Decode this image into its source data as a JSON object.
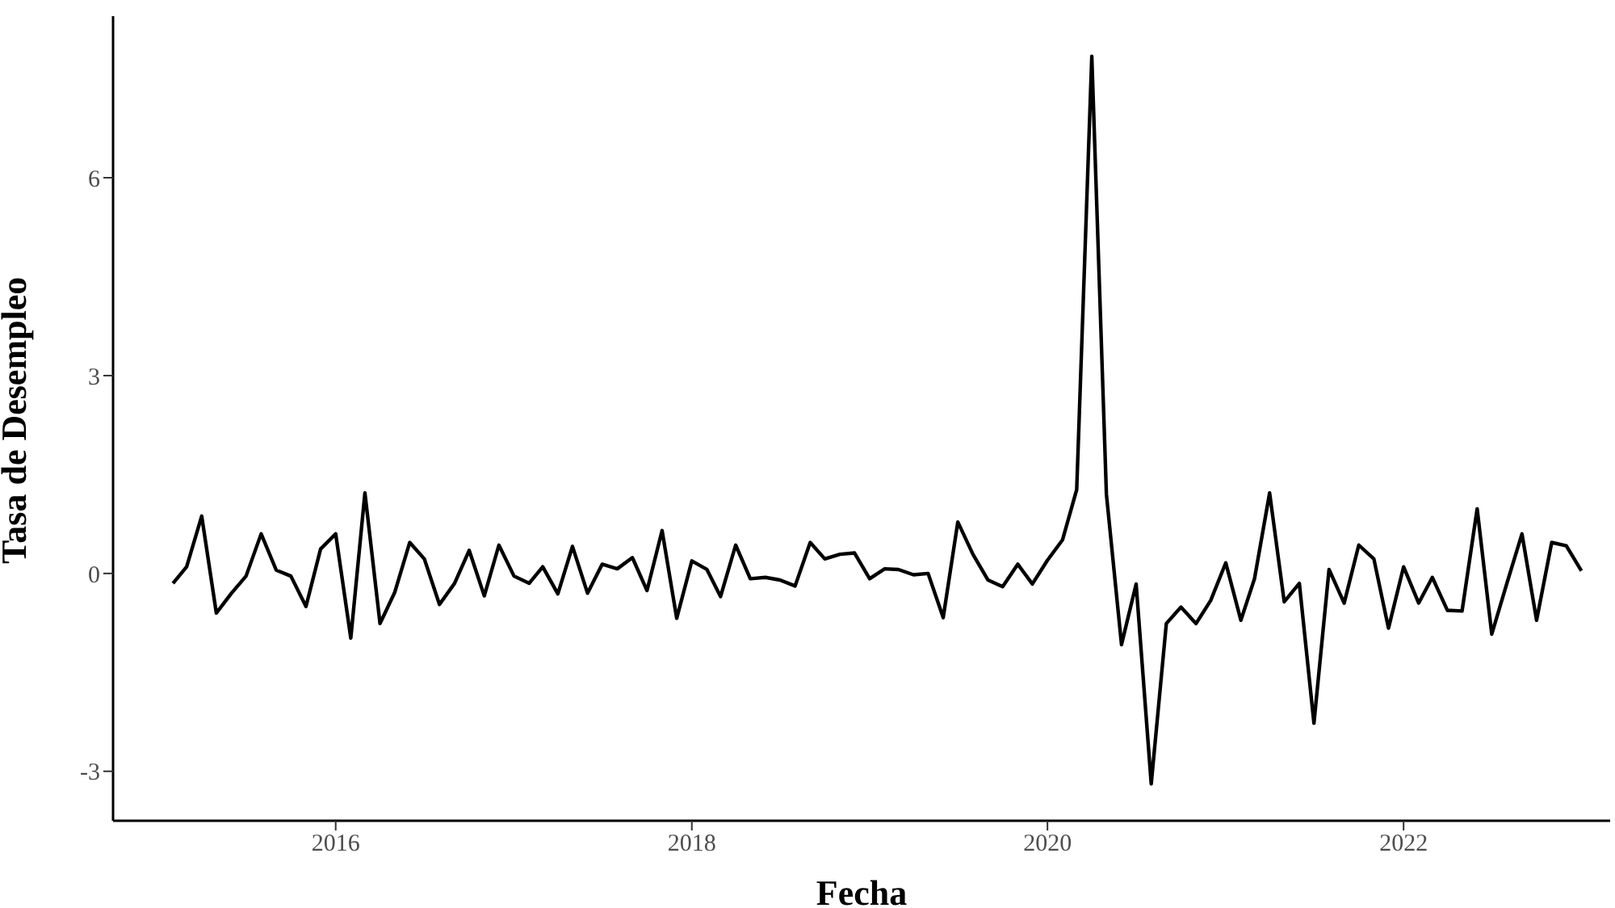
{
  "chart_data": {
    "type": "line",
    "xlabel": "Fecha",
    "ylabel": "Tasa de Desempleo",
    "x": [
      "2015-02",
      "2015-03",
      "2015-04",
      "2015-05",
      "2015-06",
      "2015-07",
      "2015-08",
      "2015-09",
      "2015-10",
      "2015-11",
      "2015-12",
      "2016-01",
      "2016-02",
      "2016-03",
      "2016-04",
      "2016-05",
      "2016-06",
      "2016-07",
      "2016-08",
      "2016-09",
      "2016-10",
      "2016-11",
      "2016-12",
      "2017-01",
      "2017-02",
      "2017-03",
      "2017-04",
      "2017-05",
      "2017-06",
      "2017-07",
      "2017-08",
      "2017-09",
      "2017-10",
      "2017-11",
      "2017-12",
      "2018-01",
      "2018-02",
      "2018-03",
      "2018-04",
      "2018-05",
      "2018-06",
      "2018-07",
      "2018-08",
      "2018-09",
      "2018-10",
      "2018-11",
      "2018-12",
      "2019-01",
      "2019-02",
      "2019-03",
      "2019-04",
      "2019-05",
      "2019-06",
      "2019-07",
      "2019-08",
      "2019-09",
      "2019-10",
      "2019-11",
      "2019-12",
      "2020-01",
      "2020-02",
      "2020-03",
      "2020-04",
      "2020-05",
      "2020-06",
      "2020-07",
      "2020-08",
      "2020-09",
      "2020-10",
      "2020-11",
      "2020-12",
      "2021-01",
      "2021-02",
      "2021-03",
      "2021-04",
      "2021-05",
      "2021-06",
      "2021-07",
      "2021-08",
      "2021-09",
      "2021-10",
      "2021-11",
      "2021-12",
      "2022-01",
      "2022-02",
      "2022-03",
      "2022-04",
      "2022-05",
      "2022-06",
      "2022-07",
      "2022-08",
      "2022-09",
      "2022-10",
      "2022-11",
      "2022-12",
      "2023-01"
    ],
    "series": [
      {
        "color": "#000000",
        "values": [
          -0.15,
          0.1,
          0.87,
          -0.6,
          -0.3,
          -0.04,
          0.6,
          0.05,
          -0.04,
          -0.5,
          0.37,
          0.6,
          -0.98,
          1.22,
          -0.76,
          -0.29,
          0.47,
          0.22,
          -0.47,
          -0.15,
          0.35,
          -0.34,
          0.43,
          -0.04,
          -0.15,
          0.1,
          -0.31,
          0.41,
          -0.3,
          0.14,
          0.07,
          0.24,
          -0.26,
          0.65,
          -0.68,
          0.19,
          0.06,
          -0.35,
          0.43,
          -0.08,
          -0.06,
          -0.1,
          -0.19,
          0.47,
          0.22,
          0.29,
          0.31,
          -0.08,
          0.07,
          0.06,
          -0.02,
          0,
          -0.67,
          0.78,
          0.29,
          -0.1,
          -0.2,
          0.14,
          -0.16,
          0.2,
          0.51,
          1.27,
          7.84,
          1.2,
          -1.08,
          -0.16,
          -3.19,
          -0.76,
          -0.51,
          -0.76,
          -0.41,
          0.16,
          -0.71,
          -0.08,
          1.22,
          -0.43,
          -0.15,
          -2.27,
          0.06,
          -0.45,
          0.43,
          0.22,
          -0.83,
          0.1,
          -0.45,
          -0.06,
          -0.56,
          -0.57,
          0.98,
          -0.92,
          -0.15,
          0.6,
          -0.71,
          0.47,
          0.42,
          0.04
        ]
      }
    ],
    "xlim": [
      "2014-10",
      "2023-03"
    ],
    "xticks": [
      "2016",
      "2018",
      "2020",
      "2022"
    ],
    "ylim": [
      -3.75,
      8.45
    ],
    "yticks": [
      -3,
      0,
      3,
      6
    ],
    "grid": false,
    "legend": false
  }
}
